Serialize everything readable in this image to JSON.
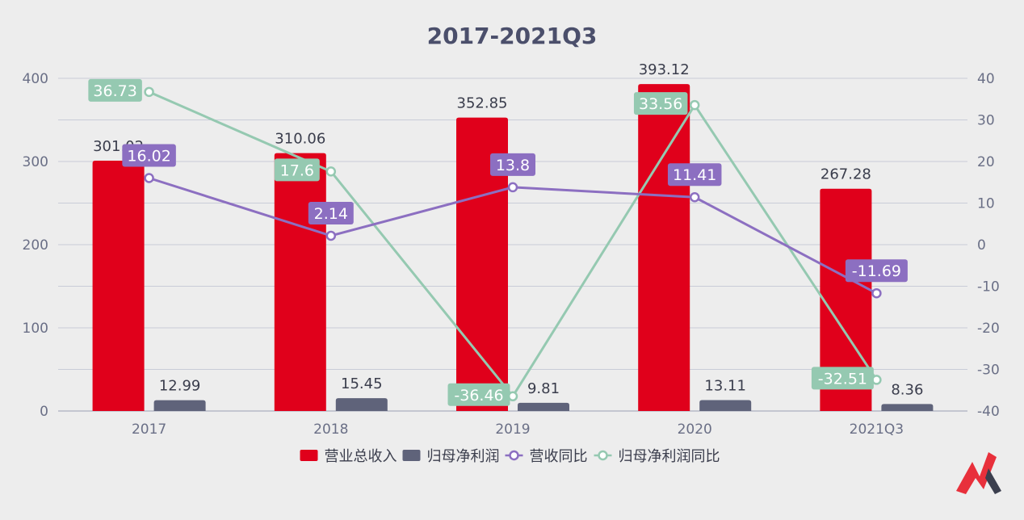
{
  "chart_data": {
    "type": "bar",
    "title": "2017-2021Q3",
    "categories": [
      "2017",
      "2018",
      "2019",
      "2020",
      "2021Q3"
    ],
    "left_axis": {
      "ylim": [
        0,
        400
      ],
      "ticks": [
        0,
        100,
        200,
        300,
        400
      ]
    },
    "right_axis": {
      "ylim": [
        -40,
        40
      ],
      "ticks": [
        -40,
        -30,
        -20,
        -10,
        0,
        10,
        20,
        30,
        40
      ]
    },
    "grid": true,
    "legend_position": "bottom",
    "series": [
      {
        "name": "营业总收入",
        "kind": "bar",
        "axis": "left",
        "color": "#e0001b",
        "values": [
          301.02,
          310.06,
          352.85,
          393.12,
          267.28
        ],
        "labels": [
          "301.02",
          "310.06",
          "352.85",
          "393.12",
          "267.28"
        ]
      },
      {
        "name": "归母净利润",
        "kind": "bar",
        "axis": "left",
        "color": "#5f637a",
        "values": [
          12.99,
          15.45,
          9.81,
          13.11,
          8.36
        ],
        "labels": [
          "12.99",
          "15.45",
          "9.81",
          "13.11",
          "8.36"
        ]
      },
      {
        "name": "营收同比",
        "kind": "line",
        "axis": "right",
        "color": "#8c6fc1",
        "values": [
          16.02,
          2.14,
          13.8,
          11.41,
          -11.69
        ],
        "labels": [
          "16.02",
          "2.14",
          "13.8",
          "11.41",
          "-11.69"
        ]
      },
      {
        "name": "归母净利润同比",
        "kind": "line",
        "axis": "right",
        "color": "#95c9b1",
        "values": [
          36.73,
          17.6,
          -36.46,
          33.56,
          -32.51
        ],
        "labels": [
          "36.73",
          "17.6",
          "-36.46",
          "33.56",
          "-32.51"
        ]
      }
    ]
  },
  "logo": {
    "name": "brand-logo",
    "colors": [
      "#e8303b",
      "#3b3f4e"
    ]
  }
}
